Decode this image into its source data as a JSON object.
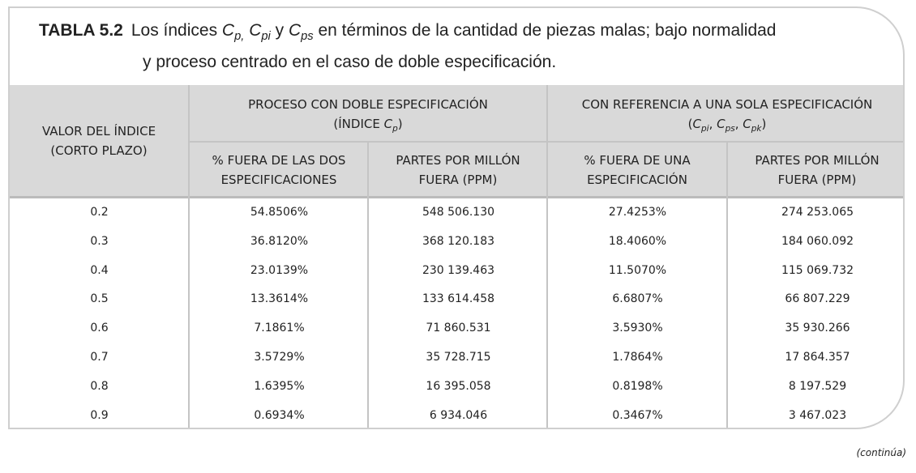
{
  "caption": {
    "label": "TABLA 5.2",
    "line1": [
      "Los índices ",
      "C",
      "p,",
      " ",
      "C",
      "pi",
      " y ",
      "C",
      "ps",
      " en términos de la cantidad de piezas malas; bajo normalidad"
    ],
    "line2": "y proceso centrado en el caso de doble especificación."
  },
  "table": {
    "header": {
      "index": [
        "VALOR DEL ÍNDICE",
        "(CORTO PLAZO)"
      ],
      "group1": {
        "title": "PROCESO CON DOBLE ESPECIFICACIÓN",
        "sub": [
          "(ÍNDICE ",
          "C",
          "p",
          ")"
        ]
      },
      "group2": {
        "title": "CON REFERENCIA A UNA SOLA ESPECIFICACIÓN",
        "sub": [
          "(",
          "C",
          "pi",
          ", ",
          "C",
          "ps",
          ", ",
          "C",
          "pk",
          ")"
        ]
      },
      "columns": [
        [
          "% FUERA DE LAS DOS",
          "ESPECIFICACIONES"
        ],
        [
          "PARTES POR MILLÓN",
          "FUERA (PPM)"
        ],
        [
          "% FUERA DE UNA",
          "ESPECIFICACIÓN"
        ],
        [
          "PARTES POR MILLÓN",
          "FUERA (PPM)"
        ]
      ]
    },
    "rows": [
      [
        "0.2",
        "54.8506%",
        "548 506.130",
        "27.4253%",
        "274 253.065"
      ],
      [
        "0.3",
        "36.8120%",
        "368 120.183",
        "18.4060%",
        "184 060.092"
      ],
      [
        "0.4",
        "23.0139%",
        "230 139.463",
        "11.5070%",
        "115 069.732"
      ],
      [
        "0.5",
        "13.3614%",
        "133 614.458",
        "6.6807%",
        "66 807.229"
      ],
      [
        "0.6",
        "7.1861%",
        "71 860.531",
        "3.5930%",
        "35 930.266"
      ],
      [
        "0.7",
        "3.5729%",
        "35 728.715",
        "1.7864%",
        "17 864.357"
      ],
      [
        "0.8",
        "1.6395%",
        "16 395.058",
        "0.8198%",
        "8 197.529"
      ],
      [
        "0.9",
        "0.6934%",
        "6 934.046",
        "0.3467%",
        "3 467.023"
      ]
    ]
  },
  "footer": "(continúa)"
}
